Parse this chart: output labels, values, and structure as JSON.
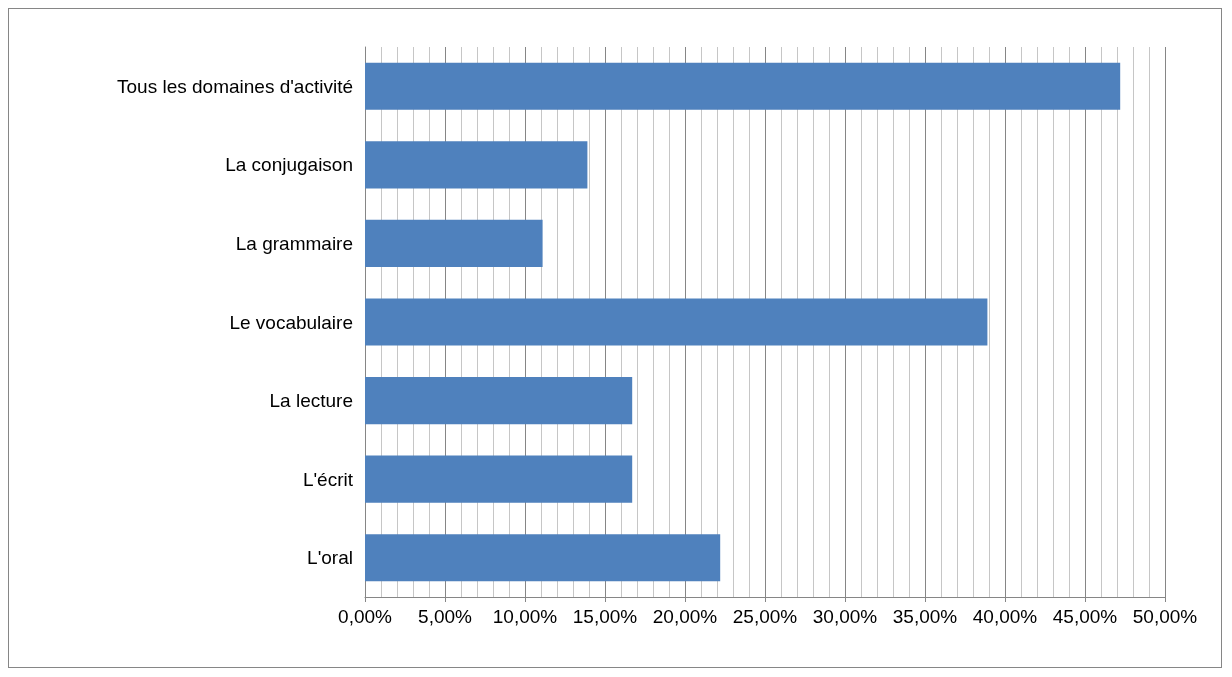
{
  "chart_data": {
    "type": "bar",
    "orientation": "horizontal",
    "categories": [
      "Tous les domaines d'activité",
      "La conjugaison",
      "La grammaire",
      "Le vocabulaire",
      "La lecture",
      "L'écrit",
      "L'oral"
    ],
    "values": [
      47.2,
      13.9,
      11.1,
      38.9,
      16.7,
      16.7,
      22.2
    ],
    "color": "#4f81bd",
    "xlim": [
      0,
      50
    ],
    "xticks": [
      {
        "value": 0,
        "label": "0,00%"
      },
      {
        "value": 1,
        "label": null
      },
      {
        "value": 2,
        "label": null
      },
      {
        "value": 3,
        "label": null
      },
      {
        "value": 4,
        "label": null
      },
      {
        "value": 5,
        "label": "5,00%"
      },
      {
        "value": 6,
        "label": null
      },
      {
        "value": 7,
        "label": null
      },
      {
        "value": 8,
        "label": null
      },
      {
        "value": 9,
        "label": null
      },
      {
        "value": 10,
        "label": "10,00%"
      },
      {
        "value": 11,
        "label": null
      },
      {
        "value": 12,
        "label": null
      },
      {
        "value": 13,
        "label": null
      },
      {
        "value": 14,
        "label": null
      },
      {
        "value": 15,
        "label": "15,00%"
      },
      {
        "value": 16,
        "label": null
      },
      {
        "value": 17,
        "label": null
      },
      {
        "value": 18,
        "label": null
      },
      {
        "value": 19,
        "label": null
      },
      {
        "value": 20,
        "label": "20,00%"
      },
      {
        "value": 21,
        "label": null
      },
      {
        "value": 22,
        "label": null
      },
      {
        "value": 23,
        "label": null
      },
      {
        "value": 24,
        "label": null
      },
      {
        "value": 25,
        "label": "25,00%"
      },
      {
        "value": 26,
        "label": null
      },
      {
        "value": 27,
        "label": null
      },
      {
        "value": 28,
        "label": null
      },
      {
        "value": 29,
        "label": null
      },
      {
        "value": 30,
        "label": "30,00%"
      },
      {
        "value": 31,
        "label": null
      },
      {
        "value": 32,
        "label": null
      },
      {
        "value": 33,
        "label": null
      },
      {
        "value": 34,
        "label": null
      },
      {
        "value": 35,
        "label": "35,00%"
      },
      {
        "value": 36,
        "label": null
      },
      {
        "value": 37,
        "label": null
      },
      {
        "value": 38,
        "label": null
      },
      {
        "value": 39,
        "label": null
      },
      {
        "value": 40,
        "label": "40,00%"
      },
      {
        "value": 41,
        "label": null
      },
      {
        "value": 42,
        "label": null
      },
      {
        "value": 43,
        "label": null
      },
      {
        "value": 44,
        "label": null
      },
      {
        "value": 45,
        "label": "45,00%"
      },
      {
        "value": 46,
        "label": null
      },
      {
        "value": 47,
        "label": null
      },
      {
        "value": 48,
        "label": null
      },
      {
        "value": 49,
        "label": null
      },
      {
        "value": 50,
        "label": "50,00%"
      }
    ],
    "grid": true
  }
}
